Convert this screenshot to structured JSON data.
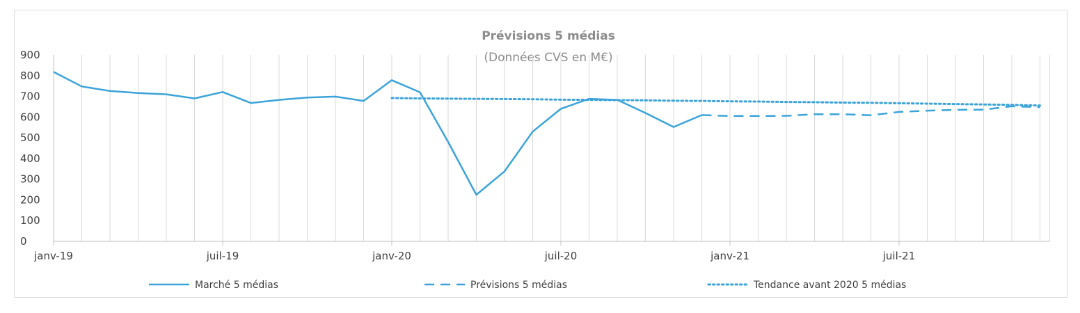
{
  "chart_data": {
    "type": "line",
    "title": "Prévisions 5 médias",
    "subtitle": "(Données CVS en M€)",
    "xlabel": "",
    "ylabel": "",
    "ylim": [
      0,
      900
    ],
    "yticks": [
      0,
      100,
      200,
      300,
      400,
      500,
      600,
      700,
      800,
      900
    ],
    "x": [
      "2019-01",
      "2019-02",
      "2019-03",
      "2019-04",
      "2019-05",
      "2019-06",
      "2019-07",
      "2019-08",
      "2019-09",
      "2019-10",
      "2019-11",
      "2019-12",
      "2020-01",
      "2020-02",
      "2020-03",
      "2020-04",
      "2020-05",
      "2020-06",
      "2020-07",
      "2020-08",
      "2020-09",
      "2020-10",
      "2020-11",
      "2020-12",
      "2021-01",
      "2021-02",
      "2021-03",
      "2021-04",
      "2021-05",
      "2021-06",
      "2021-07",
      "2021-08",
      "2021-09",
      "2021-10",
      "2021-11",
      "2021-12"
    ],
    "xtick_labels": [
      {
        "label": "janv-19",
        "index": 0
      },
      {
        "label": "juil-19",
        "index": 6
      },
      {
        "label": "janv-20",
        "index": 12
      },
      {
        "label": "juil-20",
        "index": 18
      },
      {
        "label": "janv-21",
        "index": 24
      },
      {
        "label": "juil-21",
        "index": 30
      }
    ],
    "vertical_gridlines": true,
    "legend_position": "bottom",
    "series": [
      {
        "name": "Marché 5 médias",
        "style": "solid",
        "color": "#3ba3d9",
        "values": [
          818,
          748,
          726,
          716,
          710,
          690,
          721,
          668,
          683,
          694,
          699,
          678,
          778,
          720,
          480,
          225,
          338,
          530,
          640,
          688,
          683,
          620,
          552,
          610,
          null,
          null,
          null,
          null,
          null,
          null,
          null,
          null,
          null,
          null,
          null,
          null
        ]
      },
      {
        "name": "Prévisions 5 médias",
        "style": "dashed",
        "color": "#3ba3d9",
        "values": [
          null,
          null,
          null,
          null,
          null,
          null,
          null,
          null,
          null,
          null,
          null,
          null,
          null,
          null,
          null,
          null,
          null,
          null,
          null,
          null,
          null,
          null,
          null,
          610,
          605,
          605,
          606,
          614,
          614,
          609,
          625,
          631,
          635,
          636,
          652,
          648
        ]
      },
      {
        "name": "Tendance avant 2020 5 médias",
        "style": "dotted",
        "color": "#3ba3d9",
        "values": [
          null,
          null,
          null,
          null,
          null,
          null,
          null,
          null,
          null,
          null,
          null,
          null,
          692,
          690,
          689,
          688,
          687,
          686,
          684,
          683,
          682,
          681,
          679,
          678,
          676,
          675,
          673,
          672,
          670,
          669,
          667,
          665,
          663,
          661,
          659,
          656
        ]
      }
    ]
  }
}
